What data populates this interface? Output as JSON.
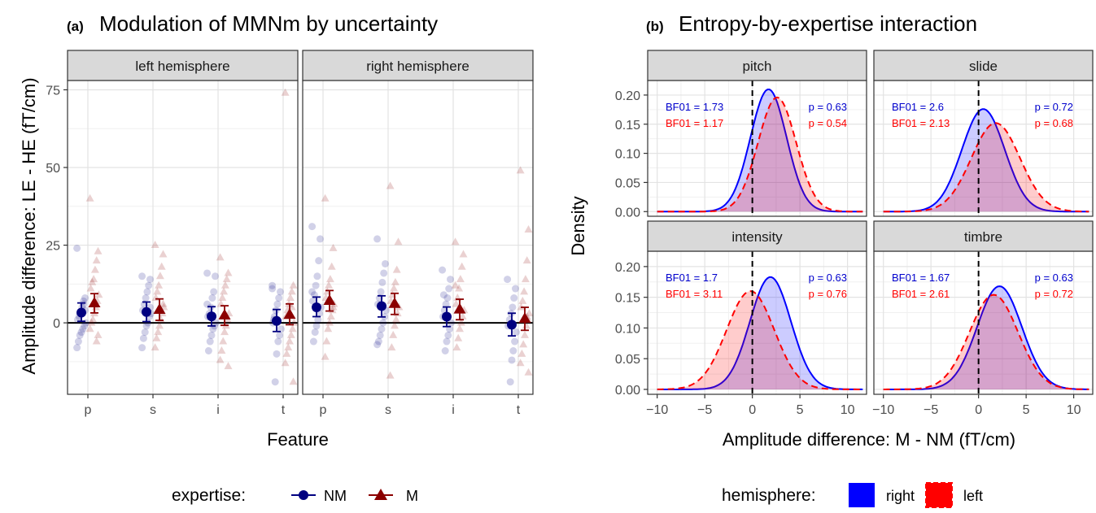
{
  "left_figure": {
    "tag": "(a)",
    "title": "Modulation of MMNm by uncertainty",
    "ylabel": "Amplitude difference: LE - HE (fT/cm)",
    "xlabel": "Feature",
    "legend_title": "expertise:",
    "legend": [
      {
        "label": "NM",
        "color": "#000080",
        "marker": "circle"
      },
      {
        "label": "M",
        "color": "#8b0000",
        "marker": "triangle"
      }
    ]
  },
  "right_figure": {
    "tag": "(b)",
    "title": "Entropy-by-expertise interaction",
    "ylabel": "Density",
    "xlabel": "Amplitude difference: M - NM (fT/cm)",
    "legend_title": "hemisphere:",
    "legend": [
      {
        "label": "right",
        "color": "#0000ff",
        "line": "solid"
      },
      {
        "label": "left",
        "color": "#ff0000",
        "line": "dashed"
      }
    ]
  },
  "chart_data": [
    {
      "type": "scatter",
      "title": "Modulation of MMNm by uncertainty",
      "xlabel": "Feature",
      "ylabel": "Amplitude difference: LE - HE (fT/cm)",
      "categories": [
        "p",
        "s",
        "i",
        "t"
      ],
      "yticks": [
        0,
        25,
        50,
        75
      ],
      "ylim": [
        -23,
        78
      ],
      "grid": true,
      "legend_position": "bottom",
      "facets": [
        {
          "label": "left hemisphere",
          "series": [
            {
              "name": "NM",
              "means": [
                3.3,
                3.5,
                2.1,
                0.6
              ],
              "ci": [
                [
                  0.5,
                  6.4
                ],
                [
                  0.4,
                  6.7
                ],
                [
                  -1.0,
                  5.2
                ],
                [
                  -2.8,
                  4.3
                ]
              ],
              "points": [
                [
                  24,
                  8,
                  7,
                  5,
                  3,
                  2,
                  1,
                  0,
                  -1,
                  -2,
                  -3,
                  -4,
                  -6,
                  -8,
                  4,
                  6
                ],
                [
                  15,
                  14,
                  12,
                  10,
                  8,
                  6,
                  4,
                  3,
                  2,
                  0,
                  -1,
                  -3,
                  -5,
                  -8,
                  5
                ],
                [
                  16,
                  15,
                  10,
                  8,
                  5,
                  3,
                  2,
                  0,
                  -1,
                  -2,
                  -4,
                  -6,
                  -9,
                  6
                ],
                [
                  12,
                  10,
                  8,
                  6,
                  4,
                  2,
                  0,
                  -2,
                  -4,
                  -6,
                  -10,
                  -19,
                  1,
                  11
                ]
              ]
            },
            {
              "name": "M",
              "means": [
                6.3,
                4.2,
                2.4,
                2.6
              ],
              "ci": [
                [
                  3.2,
                  9.4
                ],
                [
                  0.8,
                  7.7
                ],
                [
                  -0.8,
                  5.5
                ],
                [
                  -0.6,
                  6.1
                ]
              ],
              "points": [
                [
                  40,
                  23,
                  20,
                  17,
                  14,
                  13,
                  11,
                  9,
                  7,
                  5,
                  3,
                  1,
                  0,
                  -2,
                  -4,
                  -6
                ],
                [
                  25,
                  22,
                  18,
                  15,
                  12,
                  10,
                  8,
                  5,
                  3,
                  1,
                  -1,
                  -3,
                  -5,
                  -8,
                  6
                ],
                [
                  21,
                  16,
                  14,
                  12,
                  10,
                  8,
                  6,
                  3,
                  1,
                  -1,
                  -3,
                  -6,
                  -9,
                  -12,
                  -14
                ],
                [
                  74,
                  12,
                  10,
                  8,
                  6,
                  4,
                  2,
                  0,
                  -2,
                  -4,
                  -6,
                  -8,
                  -10,
                  -13,
                  -19,
                  5
                ]
              ]
            }
          ]
        },
        {
          "label": "right hemisphere",
          "series": [
            {
              "name": "NM",
              "means": [
                5.0,
                5.4,
                2.0,
                -0.6
              ],
              "ci": [
                [
                  2.0,
                  8.3
                ],
                [
                  1.9,
                  8.7
                ],
                [
                  -1.2,
                  5.1
                ],
                [
                  -4.2,
                  3.1
                ]
              ],
              "points": [
                [
                  31,
                  27,
                  20,
                  15,
                  12,
                  9,
                  7,
                  5,
                  3,
                  1,
                  -1,
                  -3,
                  -6,
                  10
                ],
                [
                  27,
                  19,
                  16,
                  13,
                  10,
                  8,
                  6,
                  4,
                  2,
                  0,
                  -2,
                  -4,
                  -6,
                  -7
                ],
                [
                  17,
                  14,
                  11,
                  8,
                  6,
                  4,
                  2,
                  0,
                  -2,
                  -4,
                  -6,
                  -9,
                  9
                ],
                [
                  14,
                  11,
                  8,
                  5,
                  3,
                  1,
                  -1,
                  -3,
                  -6,
                  -9,
                  -12,
                  -19
                ]
              ]
            },
            {
              "name": "M",
              "means": [
                7.1,
                6.1,
                4.3,
                1.3
              ],
              "ci": [
                [
                  3.8,
                  10.4
                ],
                [
                  2.7,
                  9.5
                ],
                [
                  1.0,
                  7.6
                ],
                [
                  -2.4,
                  5.0
                ]
              ],
              "points": [
                [
                  40,
                  24,
                  18,
                  14,
                  12,
                  10,
                  8,
                  6,
                  4,
                  2,
                  0,
                  -2,
                  -6,
                  -11,
                  5
                ],
                [
                  44,
                  26,
                  17,
                  13,
                  11,
                  9,
                  7,
                  5,
                  3,
                  1,
                  -1,
                  -4,
                  -8,
                  -17
                ],
                [
                  26,
                  22,
                  18,
                  14,
                  11,
                  8,
                  6,
                  4,
                  2,
                  0,
                  -2,
                  -5,
                  -8,
                  12
                ],
                [
                  49,
                  30,
                  20,
                  14,
                  10,
                  7,
                  5,
                  3,
                  1,
                  -1,
                  -4,
                  -7,
                  -10,
                  -13,
                  -16,
                  2
                ]
              ]
            }
          ]
        }
      ]
    },
    {
      "type": "area",
      "title": "Entropy-by-expertise interaction",
      "xlabel": "Amplitude difference: M - NM (fT/cm)",
      "ylabel": "Density",
      "xlim": [
        -11,
        12
      ],
      "ylim": [
        -0.008,
        0.225
      ],
      "xticks": [
        -10,
        -5,
        0,
        5,
        10
      ],
      "yticks": [
        0.0,
        0.05,
        0.1,
        0.15,
        0.2
      ],
      "ytick_labels": [
        "0.00",
        "0.05",
        "0.10",
        "0.15",
        "0.20"
      ],
      "vline": 0,
      "grid": true,
      "legend_position": "bottom",
      "facets": [
        {
          "label": "pitch",
          "bf_right": "BF01 = 1.73",
          "bf_left": "BF01 = 1.17",
          "p_right": "p = 0.63",
          "p_left": "p = 0.54",
          "series": [
            {
              "name": "right",
              "mean": 1.7,
              "sd": 1.9,
              "peak": 0.21
            },
            {
              "name": "left",
              "mean": 2.6,
              "sd": 2.0,
              "peak": 0.196
            }
          ]
        },
        {
          "label": "slide",
          "bf_right": "BF01 = 2.6",
          "bf_left": "BF01 = 2.13",
          "p_right": "p = 0.72",
          "p_left": "p = 0.68",
          "series": [
            {
              "name": "right",
              "mean": 0.5,
              "sd": 2.25,
              "peak": 0.176
            },
            {
              "name": "left",
              "mean": 1.8,
              "sd": 2.55,
              "peak": 0.152
            }
          ]
        },
        {
          "label": "intensity",
          "bf_right": "BF01 = 1.7",
          "bf_left": "BF01 = 3.11",
          "p_right": "p = 0.63",
          "p_left": "p = 0.76",
          "series": [
            {
              "name": "right",
              "mean": 1.9,
              "sd": 2.15,
              "peak": 0.183
            },
            {
              "name": "left",
              "mean": -0.2,
              "sd": 2.5,
              "peak": 0.16
            }
          ]
        },
        {
          "label": "timbre",
          "bf_right": "BF01 = 1.67",
          "bf_left": "BF01 = 2.61",
          "p_right": "p = 0.63",
          "p_left": "p = 0.72",
          "series": [
            {
              "name": "right",
              "mean": 2.2,
              "sd": 2.35,
              "peak": 0.168
            },
            {
              "name": "left",
              "mean": 1.6,
              "sd": 2.55,
              "peak": 0.154
            }
          ]
        }
      ]
    }
  ]
}
